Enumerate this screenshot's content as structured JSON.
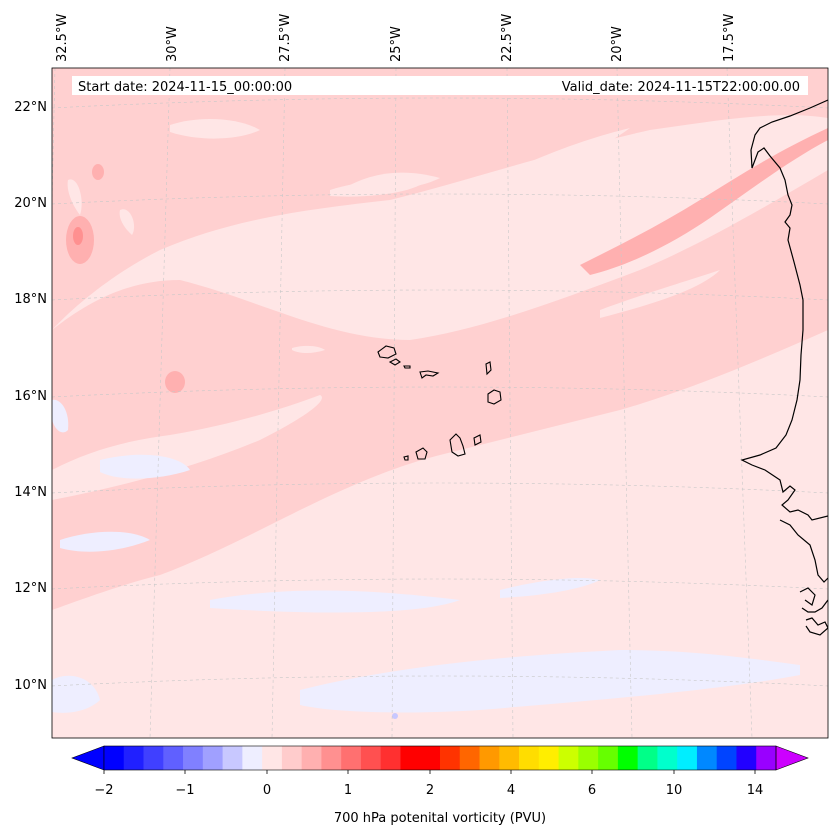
{
  "map": {
    "start_label": "Start date: 2024-11-15_00:00:00",
    "valid_label": "Valid_date: 2024-11-15T22:00:00.00",
    "field_name": "700 hPa potenital vorticity (PVU)",
    "lon_labels": [
      "32.5°W",
      "30°W",
      "27.5°W",
      "25°W",
      "22.5°W",
      "20°W",
      "17.5°W"
    ],
    "lat_labels": [
      "22°N",
      "20°N",
      "18°N",
      "16°N",
      "14°N",
      "12°N",
      "10°N"
    ],
    "islands": "Cape Verde",
    "coast": "West Africa"
  },
  "colorbar": {
    "tick_labels": [
      "−2",
      "−1",
      "0",
      "1",
      "2",
      "4",
      "6",
      "10",
      "14"
    ],
    "tick_levels": [
      -2,
      -1,
      0,
      1,
      2,
      4,
      6,
      10,
      14
    ],
    "levels": [
      -2,
      -1.75,
      -1.5,
      -1.25,
      -1,
      -0.75,
      -0.5,
      -0.25,
      0,
      0.25,
      0.5,
      0.75,
      1,
      1.25,
      1.5,
      1.75,
      2,
      2.5,
      3,
      3.5,
      4,
      4.5,
      5,
      5.5,
      6,
      7,
      8,
      9,
      10,
      11,
      12,
      13,
      14,
      15
    ],
    "colors": [
      "#0000ff",
      "#2020ff",
      "#4040ff",
      "#6060ff",
      "#8080ff",
      "#a0a0ff",
      "#c8c8ff",
      "#eeeeff",
      "#ffe6e6",
      "#ffcccc",
      "#ffb0b0",
      "#ff9090",
      "#ff7070",
      "#ff5050",
      "#ff3030",
      "#ff0000",
      "#ff0000",
      "#ff3300",
      "#ff6600",
      "#ff9900",
      "#ffbb00",
      "#ffdd00",
      "#ffee00",
      "#ccff00",
      "#99ff00",
      "#66ff00",
      "#00ff00",
      "#00ff88",
      "#00ffcc",
      "#00eeff",
      "#0088ff",
      "#0044ff",
      "#2200ff",
      "#9900ff"
    ],
    "under_color": "#0000ff",
    "over_color": "#cc00ff"
  },
  "palette": {
    "pv_low": "#ffe6e6",
    "pv_mid": "#ffd0d0",
    "pv_high": "#ffb0b0",
    "pv_neg": "#eeeeff",
    "coast": "#000000",
    "grid": "#c8c8c8"
  }
}
